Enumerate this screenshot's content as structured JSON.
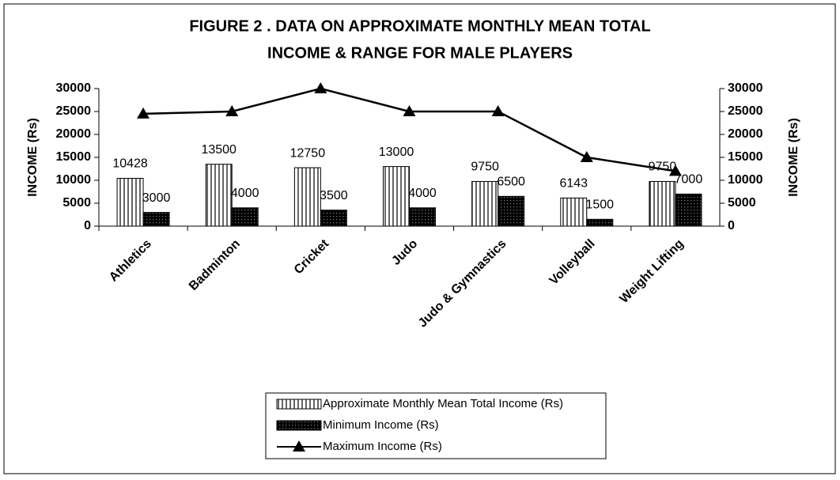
{
  "chart_data": {
    "type": "bar",
    "title": [
      "FIGURE 2 . DATA ON APPROXIMATE MONTHLY MEAN TOTAL",
      "INCOME & RANGE FOR MALE PLAYERS"
    ],
    "y_label": "INCOME (Rs)",
    "y2_label": "INCOME (Rs)",
    "categories": [
      "Athletics",
      "Badminton",
      "Cricket",
      "Judo",
      "Judo & Gymnastics",
      "Volleyball",
      "Weight Lifting"
    ],
    "series": [
      {
        "name": "Approximate Monthly Mean Total Income (Rs)",
        "type": "bar",
        "pattern": "vertical-stripes",
        "color": "#000000",
        "values": [
          10428,
          13500,
          12750,
          13000,
          9750,
          6143,
          9750
        ]
      },
      {
        "name": "Minimum Income (Rs)",
        "type": "bar",
        "pattern": "dots",
        "color": "#000000",
        "values": [
          3000,
          4000,
          3500,
          4000,
          6500,
          1500,
          7000
        ]
      },
      {
        "name": "Maximum Income (Rs)",
        "type": "line",
        "axis": "y2",
        "marker": "triangle",
        "color": "#000000",
        "values": [
          24500,
          25000,
          30000,
          25000,
          25000,
          15000,
          12000
        ]
      }
    ],
    "ylim": [
      0,
      30000
    ],
    "yticks": [
      0,
      5000,
      10000,
      15000,
      20000,
      25000,
      30000
    ],
    "y2lim": [
      0,
      30000
    ],
    "y2ticks": [
      0,
      5000,
      10000,
      15000,
      20000,
      25000,
      30000
    ],
    "legend": "bottom"
  }
}
